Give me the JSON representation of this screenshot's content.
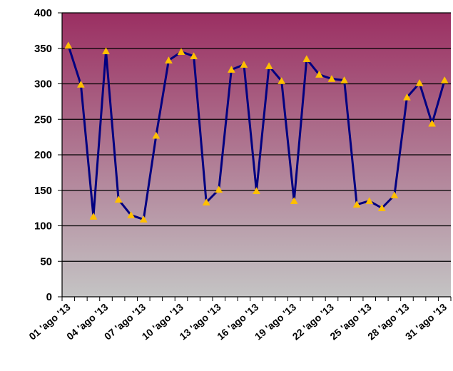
{
  "chart_data": {
    "type": "line",
    "title": "",
    "xlabel": "",
    "ylabel": "",
    "ylim": [
      0,
      400
    ],
    "y_ticks": [
      0,
      50,
      100,
      150,
      200,
      250,
      300,
      350,
      400
    ],
    "grid": "horizontal",
    "legend": "none",
    "x": [
      "01 'ago '13",
      "02 'ago '13",
      "03 'ago '13",
      "04 'ago '13",
      "05 'ago '13",
      "06 'ago '13",
      "07 'ago '13",
      "08 'ago '13",
      "09 'ago '13",
      "10 'ago '13",
      "11 'ago '13",
      "12 'ago '13",
      "13 'ago '13",
      "14 'ago '13",
      "15 'ago '13",
      "16 'ago '13",
      "17 'ago '13",
      "18 'ago '13",
      "19 'ago '13",
      "20 'ago '13",
      "21 'ago '13",
      "22 'ago '13",
      "23 'ago '13",
      "24 'ago '13",
      "25 'ago '13",
      "26 'ago '13",
      "27 'ago '13",
      "28 'ago '13",
      "29 'ago '13",
      "30 'ago '13",
      "31 'ago '13"
    ],
    "x_tick_labels": [
      "01 'ago '13",
      "04 'ago '13",
      "07 'ago '13",
      "10 'ago '13",
      "13 'ago '13",
      "16 'ago '13",
      "19 'ago '13",
      "22 'ago '13",
      "25 'ago '13",
      "28 'ago '13",
      "31 'ago '13"
    ],
    "series": [
      {
        "values": [
          354,
          299,
          113,
          346,
          137,
          115,
          109,
          227,
          333,
          345,
          339,
          133,
          151,
          320,
          327,
          149,
          325,
          304,
          135,
          335,
          313,
          307,
          305,
          130,
          135,
          125,
          143,
          281,
          301,
          244,
          305
        ]
      }
    ],
    "colors": {
      "line": "#000080",
      "marker": "#FFC000",
      "gradient_top": "#9B2F62",
      "gradient_bottom": "#C4C4C4",
      "grid": "#000000"
    }
  }
}
